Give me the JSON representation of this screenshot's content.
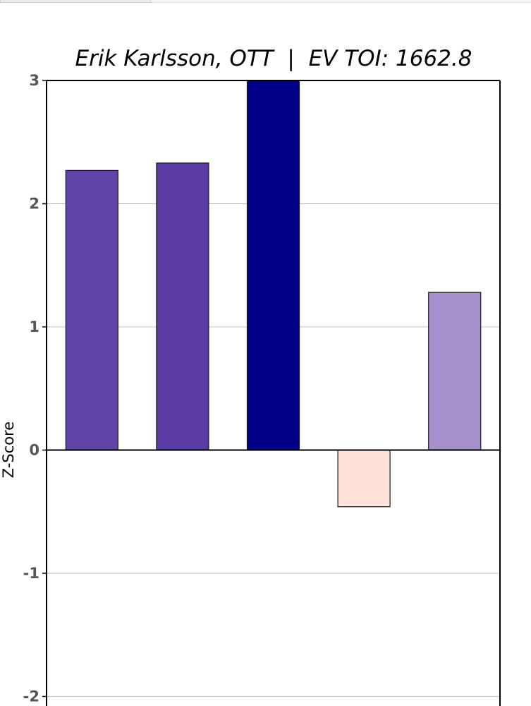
{
  "chart_data": {
    "type": "bar",
    "title": "Erik Karlsson, OTT  |  EV TOI: 1662.8",
    "xlabel": "",
    "ylabel": "Z-Score",
    "ylim": [
      -2.08,
      3.0
    ],
    "yticks": [
      "3",
      "2",
      "1",
      "0",
      "-1",
      "-2"
    ],
    "grid": "horizontal",
    "categories": [
      "",
      "",
      "",
      "",
      ""
    ],
    "values": [
      2.27,
      2.33,
      3.0,
      -0.46,
      1.28
    ],
    "bar_colors": [
      "#5f44a6",
      "#5a3aa3",
      "#00008b",
      "#ffe0d6",
      "#a690cc"
    ]
  }
}
